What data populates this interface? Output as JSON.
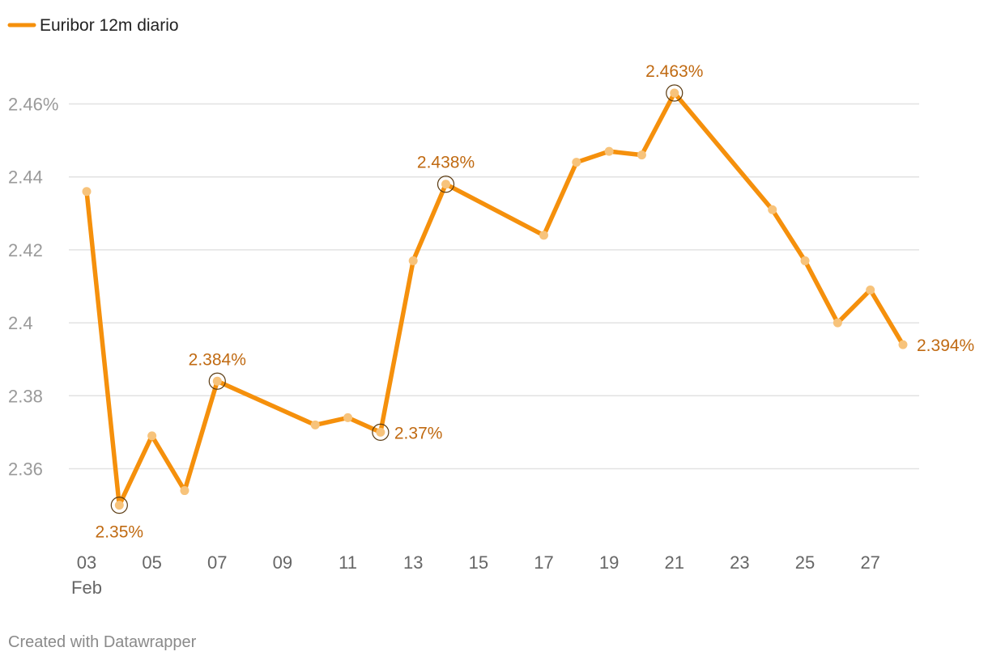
{
  "chart_data": {
    "type": "line",
    "title": "",
    "xlabel": "",
    "ylabel": "",
    "legend": {
      "position": "top-left",
      "label": "Euribor 12m diario"
    },
    "series": [
      {
        "name": "Euribor 12m diario",
        "color": "#f5900c",
        "points": [
          {
            "x": 3,
            "y": 2.436
          },
          {
            "x": 4,
            "y": 2.35
          },
          {
            "x": 5,
            "y": 2.369
          },
          {
            "x": 6,
            "y": 2.354
          },
          {
            "x": 7,
            "y": 2.384
          },
          {
            "x": 10,
            "y": 2.372
          },
          {
            "x": 11,
            "y": 2.374
          },
          {
            "x": 12,
            "y": 2.37
          },
          {
            "x": 13,
            "y": 2.417
          },
          {
            "x": 14,
            "y": 2.438
          },
          {
            "x": 17,
            "y": 2.424
          },
          {
            "x": 18,
            "y": 2.444
          },
          {
            "x": 19,
            "y": 2.447
          },
          {
            "x": 20,
            "y": 2.446
          },
          {
            "x": 21,
            "y": 2.463
          },
          {
            "x": 24,
            "y": 2.431
          },
          {
            "x": 25,
            "y": 2.417
          },
          {
            "x": 26,
            "y": 2.4
          },
          {
            "x": 27,
            "y": 2.409
          },
          {
            "x": 28,
            "y": 2.394
          }
        ]
      }
    ],
    "xlim": [
      3,
      28
    ],
    "ylim": [
      2.34,
      2.467
    ],
    "grid": true,
    "y_ticks": [
      {
        "value": 2.36,
        "label": "2.36"
      },
      {
        "value": 2.38,
        "label": "2.38"
      },
      {
        "value": 2.4,
        "label": "2.4"
      },
      {
        "value": 2.42,
        "label": "2.42"
      },
      {
        "value": 2.44,
        "label": "2.44"
      },
      {
        "value": 2.46,
        "label": "2.46%"
      }
    ],
    "x_ticks": [
      {
        "value": 3,
        "label": "03",
        "sublabel": "Feb"
      },
      {
        "value": 5,
        "label": "05"
      },
      {
        "value": 7,
        "label": "07"
      },
      {
        "value": 9,
        "label": "09"
      },
      {
        "value": 11,
        "label": "11"
      },
      {
        "value": 13,
        "label": "13"
      },
      {
        "value": 15,
        "label": "15"
      },
      {
        "value": 17,
        "label": "17"
      },
      {
        "value": 19,
        "label": "19"
      },
      {
        "value": 21,
        "label": "21"
      },
      {
        "value": 23,
        "label": "23"
      },
      {
        "value": 25,
        "label": "25"
      },
      {
        "value": 27,
        "label": "27"
      }
    ],
    "annotations": [
      {
        "x": 4,
        "y": 2.35,
        "label": "2.35%",
        "placement": "below",
        "highlight": true
      },
      {
        "x": 7,
        "y": 2.384,
        "label": "2.384%",
        "placement": "above",
        "highlight": true
      },
      {
        "x": 12,
        "y": 2.37,
        "label": "2.37%",
        "placement": "right",
        "highlight": true
      },
      {
        "x": 14,
        "y": 2.438,
        "label": "2.438%",
        "placement": "above",
        "highlight": true
      },
      {
        "x": 21,
        "y": 2.463,
        "label": "2.463%",
        "placement": "above",
        "highlight": true
      },
      {
        "x": 28,
        "y": 2.394,
        "label": "2.394%",
        "placement": "right",
        "highlight": false
      }
    ]
  },
  "footer": {
    "credit": "Created with Datawrapper"
  }
}
